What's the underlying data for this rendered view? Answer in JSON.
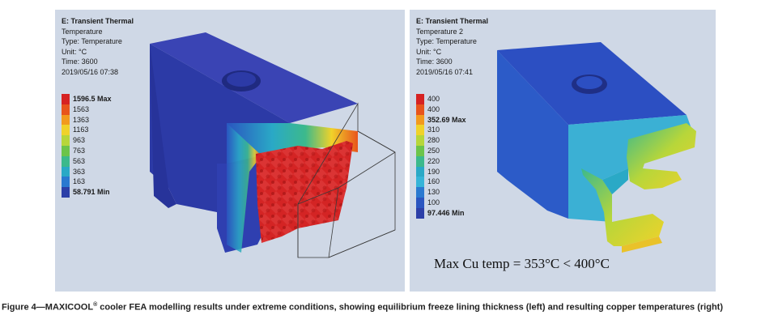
{
  "left_panel": {
    "title": "E: Transient Thermal",
    "result": "Temperature",
    "type": "Type: Temperature",
    "unit": "Unit: °C",
    "time": "Time: 3600",
    "date": "2019/05/16 07:38",
    "legend": [
      {
        "label": "1596.5 Max",
        "color": "#d62222",
        "bold": true
      },
      {
        "label": "1563",
        "color": "#e8541c",
        "bold": false
      },
      {
        "label": "1363",
        "color": "#f29a1e",
        "bold": false
      },
      {
        "label": "1163",
        "color": "#f0d22a",
        "bold": false
      },
      {
        "label": "963",
        "color": "#b7d63a",
        "bold": false
      },
      {
        "label": "763",
        "color": "#6cc44a",
        "bold": false
      },
      {
        "label": "563",
        "color": "#3cb98c",
        "bold": false
      },
      {
        "label": "363",
        "color": "#2aa9c6",
        "bold": false
      },
      {
        "label": "163",
        "color": "#2a79d0",
        "bold": false
      },
      {
        "label": "58.791 Min",
        "color": "#2c3fa8",
        "bold": true
      }
    ]
  },
  "right_panel": {
    "title": "E: Transient Thermal",
    "result": "Temperature 2",
    "type": "Type: Temperature",
    "unit": "Unit: °C",
    "time": "Time: 3600",
    "date": "2019/05/16 07:41",
    "legend": [
      {
        "label": "400",
        "color": "#d62222",
        "bold": false
      },
      {
        "label": "400",
        "color": "#e8541c",
        "bold": false
      },
      {
        "label": "352.69 Max",
        "color": "#f29a1e",
        "bold": true
      },
      {
        "label": "310",
        "color": "#f0d22a",
        "bold": false
      },
      {
        "label": "280",
        "color": "#b7d63a",
        "bold": false
      },
      {
        "label": "250",
        "color": "#6cc44a",
        "bold": false
      },
      {
        "label": "220",
        "color": "#3cb98c",
        "bold": false
      },
      {
        "label": "190",
        "color": "#2aa9c6",
        "bold": false
      },
      {
        "label": "160",
        "color": "#35b4d8",
        "bold": false
      },
      {
        "label": "130",
        "color": "#2a79d0",
        "bold": false
      },
      {
        "label": "100",
        "color": "#2a55c0",
        "bold": false
      },
      {
        "label": "97.446 Min",
        "color": "#2c3fa8",
        "bold": true
      }
    ],
    "note": "Max Cu temp = 353°C < 400°C"
  },
  "caption": {
    "lead": "Figure 4—MAXICOOL",
    "reg": "®",
    "rest": " cooler FEA modelling results under extreme conditions, showing equilibrium freeze lining thickness (left) and resulting copper temperatures (right)"
  }
}
